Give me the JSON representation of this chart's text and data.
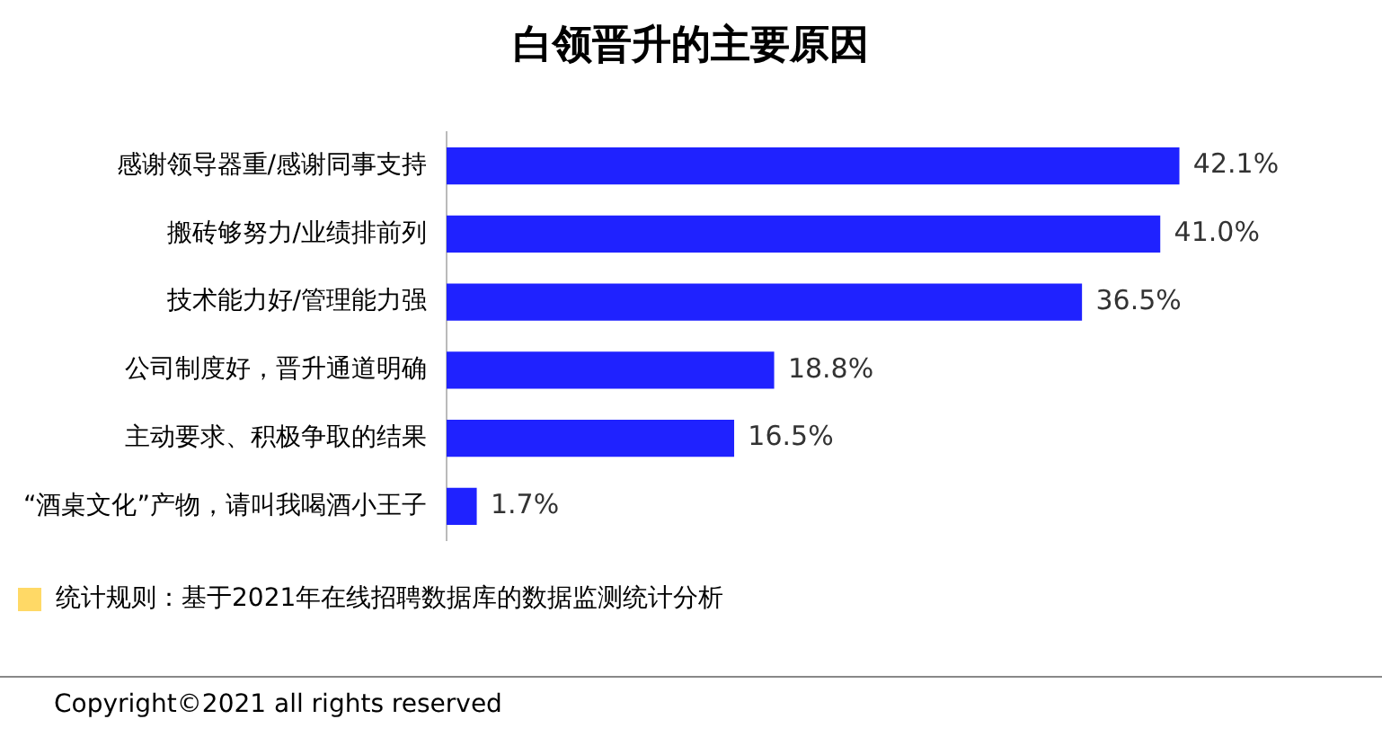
{
  "chart_data": {
    "type": "bar",
    "orientation": "horizontal",
    "title": "白领晋升的主要原因",
    "categories": [
      "感谢领导器重/感谢同事支持",
      "搬砖够努力/业绩排前列",
      "技术能力好/管理能力强",
      "公司制度好，晋升通道明确",
      "主动要求、积极争取的结果",
      "“酒桌文化”产物，请叫我喝酒小王子"
    ],
    "values": [
      42.1,
      41.0,
      36.5,
      18.8,
      16.5,
      1.7
    ],
    "value_labels": [
      "42.1%",
      "41.0%",
      "36.5%",
      "18.8%",
      "16.5%",
      "1.7%"
    ],
    "color": "#1f22ff",
    "legend": false,
    "annotations": [
      "统计规则：基于2021年在线招聘数据库的数据监测统计分析",
      "Copyright©2021 all rights reserved"
    ]
  }
}
